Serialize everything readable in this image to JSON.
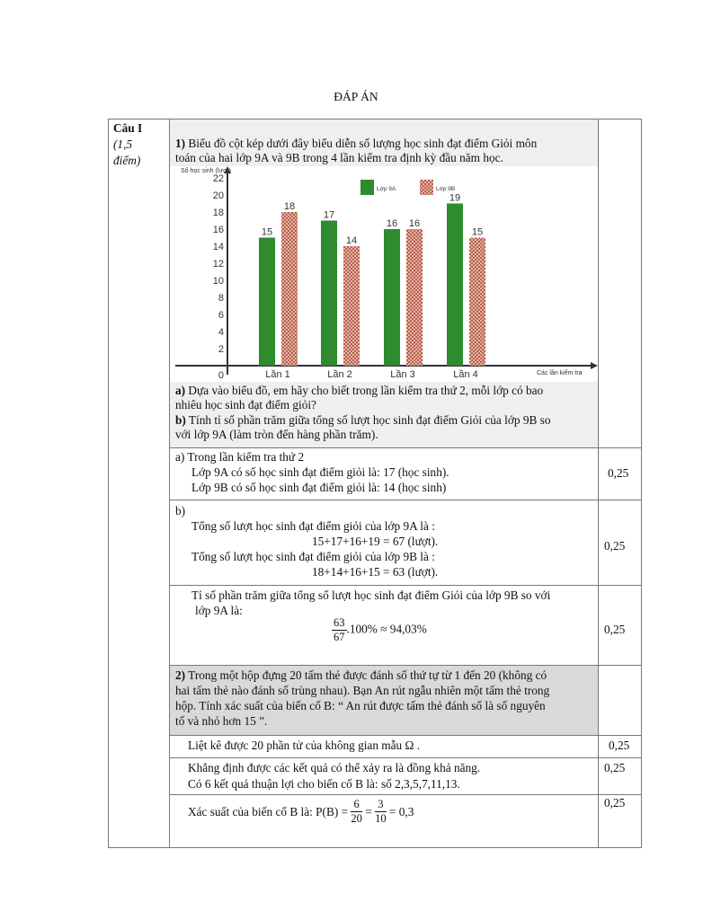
{
  "title": "ĐÁP ÁN",
  "question_label": {
    "title": "Câu I",
    "points": "(1,5 điểm)",
    "points_l1": "(1,5",
    "points_l2": "điểm)"
  },
  "part1": {
    "num": "1)",
    "intro_l1": " Biểu đồ cột kép dưới đây biểu diễn số lượng học sinh đạt điểm Giỏi môn",
    "intro_l2": "toán của hai lớp 9A và 9B trong 4 lần kiểm tra định kỳ đầu năm học.",
    "qa_label": "a)",
    "qa_l1": " Dựa vào biểu đồ, em hãy cho biết trong lần kiểm tra thứ 2, mỗi lớp có bao",
    "qa_l2": "nhiêu học sinh đạt điểm giỏi?",
    "qb_label": "b)",
    "qb_l1": " Tính tỉ số phần trăm giữa tổng số lượt học sinh đạt điểm Giỏi của lớp 9B so",
    "qb_l2": "với lớp 9A (làm tròn đến hàng phần trăm)."
  },
  "chart_data": {
    "type": "bar",
    "ylabel": "Số học sinh (lượt)",
    "xlabel": "Các lần kiểm tra",
    "categories": [
      "Lần 1",
      "Lần 2",
      "Lần 3",
      "Lần 4"
    ],
    "yticks": [
      0,
      2,
      4,
      6,
      8,
      10,
      12,
      14,
      16,
      18,
      20,
      22
    ],
    "ylim": [
      0,
      22
    ],
    "legend": "top-center",
    "series": [
      {
        "name": "Lớp 9A",
        "values": [
          15,
          17,
          16,
          19
        ],
        "color": "#2e8b2e",
        "pattern": "solid"
      },
      {
        "name": "Lớp 9B",
        "values": [
          18,
          14,
          16,
          15
        ],
        "color": "#b5553f",
        "pattern": "crosshatch"
      }
    ]
  },
  "answers": {
    "a": {
      "l1": "a) Trong lần kiểm tra thứ 2",
      "l2": "Lớp 9A có số học sinh đạt điểm giỏi là: 17 (học sinh).",
      "l3": "Lớp 9B có số học sinh đạt điểm giỏi là: 14 (học sinh)",
      "score": "0,25"
    },
    "b": {
      "l1": "b)",
      "l2": "Tổng số lượt học sinh đạt điểm giỏi của lớp 9A là :",
      "l3": "15+17+16+19 = 67 (lượt).",
      "l4": "Tổng số lượt học sinh đạt điểm giỏi của lớp 9B là :",
      "l5": "18+14+16+15 = 63 (lượt).",
      "score": "0,25"
    },
    "c": {
      "l1": "Tỉ số phần trăm giữa tổng số lượt học sinh đạt điểm Giỏi của lớp 9B so với",
      "l2": "lớp 9A là:",
      "num": "63",
      "den": "67",
      "rest": ".100% ≈ 94,03%",
      "score": "0,25"
    }
  },
  "part2": {
    "num": "2)",
    "l1": " Trong một hộp đựng 20 tấm thẻ được đánh số thứ tự từ 1 đến 20 (không có",
    "l2": "hai tấm thẻ nào đánh số trùng nhau). Bạn An rút ngẫu nhiên một tấm thẻ trong",
    "l3": "hộp. Tính xác suất của biến cố B: “ An rút được tấm thẻ đánh số là số nguyên",
    "l4": "tố và nhỏ hơn 15 ”.",
    "s1": {
      "text": "Liệt kê được 20 phần tử của không gian mẫu Ω .",
      "score": "0,25"
    },
    "s2": {
      "l1": "Khẳng định được các kết quả có thể xảy ra là đồng khả năng.",
      "l2": "Có 6 kết quả thuận lợi cho biến cố B là: số 2,3,5,7,11,13.",
      "score": "0,25"
    },
    "s3": {
      "pre": "Xác suất của biến cố B là: P(B) =",
      "n1": "6",
      "d1": "20",
      "eq": "=",
      "n2": "3",
      "d2": "10",
      "post": "= 0,3",
      "score": "0,25"
    }
  }
}
